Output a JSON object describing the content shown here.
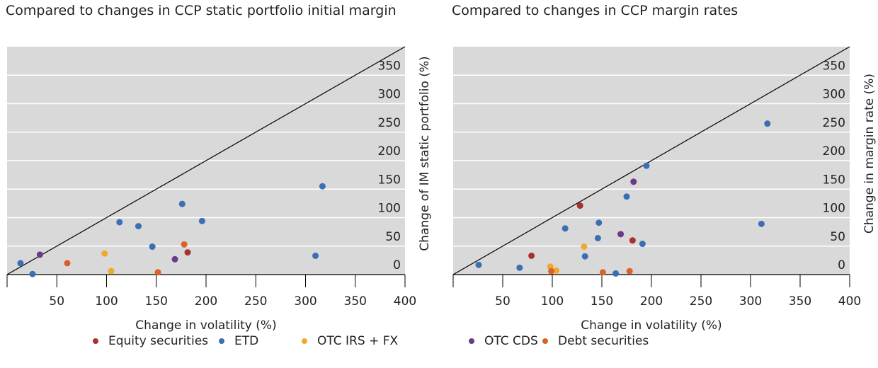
{
  "chart_data": [
    {
      "type": "scatter",
      "title": "Compared to changes in CCP static portfolio initial margin",
      "xlabel": "Change in volatility (%)",
      "ylabel": "Change of IM static portfolio (%)",
      "xlim": [
        0,
        400
      ],
      "ylim": [
        0,
        400
      ],
      "xticks": [
        50,
        100,
        150,
        200,
        250,
        300,
        350,
        400
      ],
      "yticks": [
        0,
        50,
        100,
        150,
        200,
        250,
        300,
        350
      ],
      "grid": true,
      "series": [
        {
          "name": "Equity securities",
          "color": "#a8302f",
          "x": [
            181.5
          ],
          "values": [
            39
          ]
        },
        {
          "name": "ETD",
          "color": "#3b6eb2",
          "x": [
            13.5,
            25.6,
            113,
            132,
            146,
            176,
            196,
            310,
            317
          ],
          "values": [
            20,
            1,
            92,
            85,
            49,
            124,
            94,
            33,
            155
          ]
        },
        {
          "name": "OTC IRS + FX",
          "color": "#f0a92e",
          "x": [
            98,
            104.6
          ],
          "values": [
            37,
            6
          ]
        },
        {
          "name": "OTC CDS",
          "color": "#6a3a86",
          "x": [
            33,
            168.7
          ],
          "values": [
            35,
            27
          ]
        },
        {
          "name": "Debt securities",
          "color": "#d9622b",
          "x": [
            60.5,
            151.6,
            178
          ],
          "values": [
            20,
            4,
            53
          ]
        }
      ]
    },
    {
      "type": "scatter",
      "title": "Compared to changes in CCP margin rates",
      "xlabel": "Change in volatility (%)",
      "ylabel": "Change in margin rate (%)",
      "xlim": [
        0,
        400
      ],
      "ylim": [
        0,
        400
      ],
      "xticks": [
        50,
        100,
        150,
        200,
        250,
        300,
        350,
        400
      ],
      "yticks": [
        0,
        50,
        100,
        150,
        200,
        250,
        300,
        350
      ],
      "grid": true,
      "series": [
        {
          "name": "Equity securities",
          "color": "#a8302f",
          "x": [
            79,
            128,
            181
          ],
          "values": [
            33,
            121,
            60
          ]
        },
        {
          "name": "ETD",
          "color": "#3b6eb2",
          "x": [
            25.7,
            67,
            113,
            133,
            147,
            146,
            164,
            175,
            191,
            195,
            311,
            317
          ],
          "values": [
            17,
            12,
            81,
            32,
            91,
            64,
            2,
            137,
            54,
            191,
            89,
            265
          ]
        },
        {
          "name": "OTC IRS + FX",
          "color": "#f0a92e",
          "x": [
            98,
            104,
            132
          ],
          "values": [
            14,
            7,
            49
          ]
        },
        {
          "name": "OTC CDS",
          "color": "#6a3a86",
          "x": [
            169,
            182
          ],
          "values": [
            71,
            163
          ]
        },
        {
          "name": "Debt securities",
          "color": "#d9622b",
          "x": [
            99,
            151,
            178
          ],
          "values": [
            6,
            4,
            6
          ]
        }
      ]
    }
  ]
}
